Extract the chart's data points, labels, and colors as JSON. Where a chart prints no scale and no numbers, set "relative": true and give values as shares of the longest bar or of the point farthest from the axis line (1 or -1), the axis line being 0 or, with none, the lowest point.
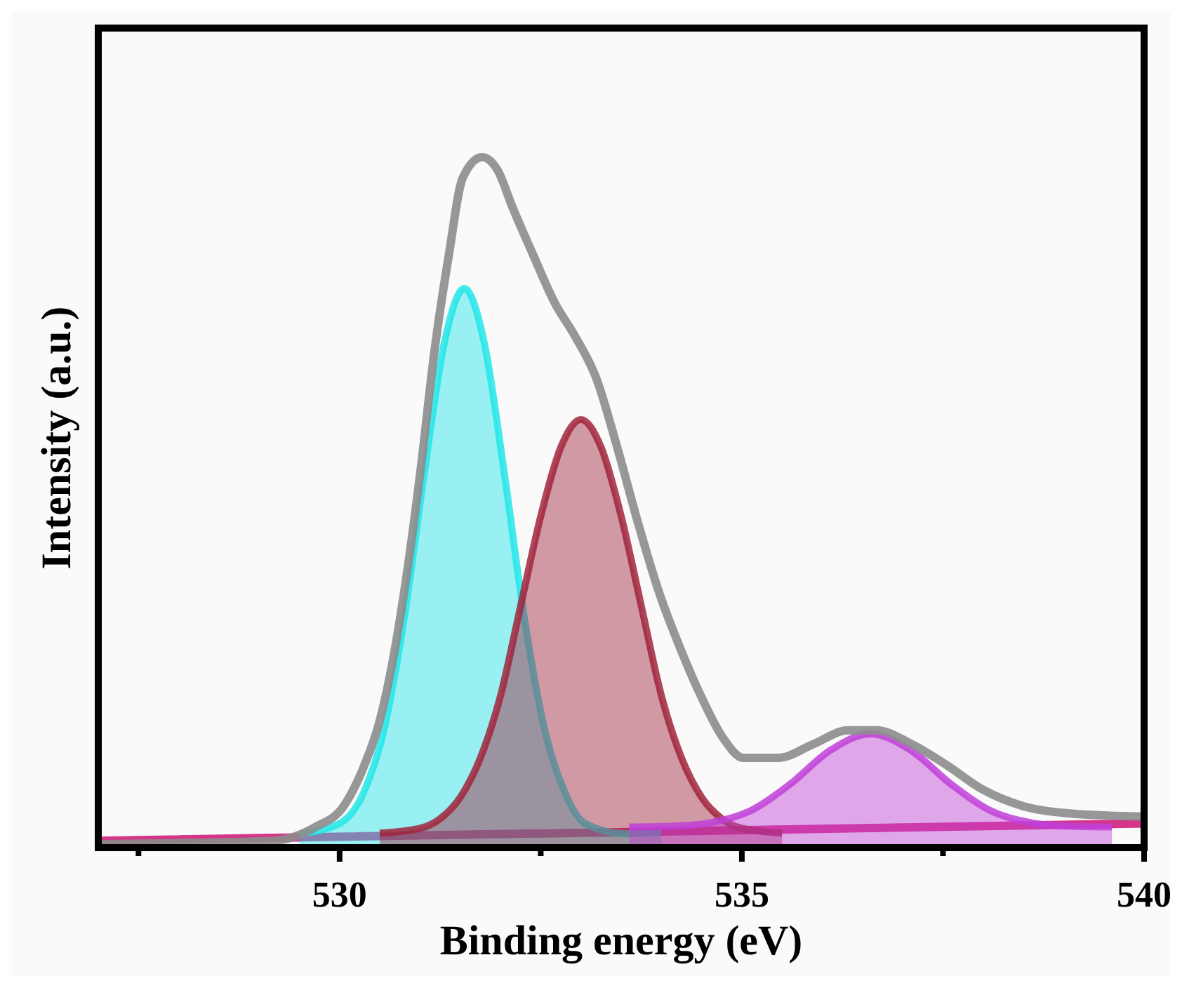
{
  "chart_data": {
    "type": "area",
    "xlabel": "Binding energy (eV)",
    "ylabel": "Intensity (a.u.)",
    "relative": true,
    "xlim": [
      527,
      540
    ],
    "xticks": [
      {
        "value": 527.5,
        "label": null
      },
      530,
      {
        "value": 532.5,
        "label": null
      },
      535,
      {
        "value": 537.5,
        "label": null
      },
      540
    ],
    "series": [
      {
        "type": "line",
        "color": "#d0207a",
        "x": [
          527,
          540
        ],
        "values": [
          0.01,
          0.035
        ]
      },
      {
        "color": "#22e5e8",
        "x": [
          529.5,
          530,
          530.3,
          530.55,
          530.8,
          531.05,
          531.3,
          531.55,
          531.8,
          532.05,
          532.3,
          532.55,
          532.8,
          533.05,
          533.55,
          534
        ],
        "values": [
          0.02,
          0.035,
          0.08,
          0.17,
          0.33,
          0.54,
          0.73,
          0.81,
          0.73,
          0.54,
          0.33,
          0.17,
          0.08,
          0.035,
          0.02,
          0.022
        ]
      },
      {
        "color": "#a0243c",
        "x": [
          530.5,
          531,
          531.25,
          531.5,
          531.75,
          532,
          532.25,
          532.5,
          532.75,
          533,
          533.25,
          533.5,
          533.75,
          534,
          534.25,
          534.5,
          534.75,
          535,
          535.5
        ],
        "values": [
          0.021,
          0.028,
          0.042,
          0.073,
          0.13,
          0.22,
          0.35,
          0.48,
          0.58,
          0.62,
          0.58,
          0.48,
          0.35,
          0.22,
          0.13,
          0.073,
          0.042,
          0.028,
          0.021
        ]
      },
      {
        "color": "#c040d8",
        "x": [
          533.6,
          534.1,
          534.6,
          535.1,
          535.6,
          536.1,
          536.6,
          537.1,
          537.6,
          538.1,
          538.6,
          539.1,
          539.6
        ],
        "values": [
          0.03,
          0.031,
          0.036,
          0.053,
          0.092,
          0.141,
          0.165,
          0.141,
          0.092,
          0.053,
          0.036,
          0.031,
          0.03
        ]
      },
      {
        "type": "line",
        "color": "#8c8c8c",
        "x": [
          527,
          529.18,
          529.7,
          530.05,
          530.31,
          530.49,
          530.66,
          530.84,
          531.01,
          531.18,
          531.36,
          531.53,
          531.77,
          531.97,
          532.14,
          532.4,
          532.67,
          532.93,
          533.19,
          533.45,
          533.71,
          533.97,
          534.23,
          534.49,
          534.76,
          535.02,
          535.45,
          535.89,
          536.32,
          536.67,
          537.11,
          537.54,
          537.98,
          538.5,
          539.03,
          539.98
        ],
        "values": [
          0.005,
          0.01,
          0.03,
          0.06,
          0.12,
          0.18,
          0.27,
          0.4,
          0.55,
          0.72,
          0.86,
          0.97,
          1,
          0.98,
          0.93,
          0.86,
          0.79,
          0.74,
          0.68,
          0.58,
          0.47,
          0.37,
          0.29,
          0.22,
          0.16,
          0.13,
          0.13,
          0.15,
          0.17,
          0.17,
          0.15,
          0.12,
          0.085,
          0.06,
          0.05,
          0.045
        ]
      }
    ]
  }
}
